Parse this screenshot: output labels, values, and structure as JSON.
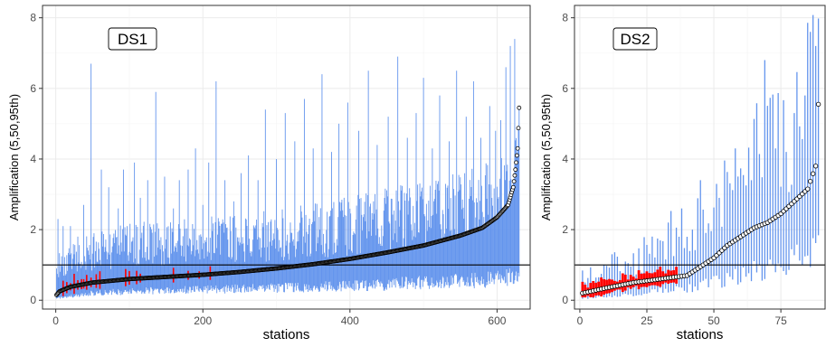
{
  "colors": {
    "interval": "#6495ed",
    "interval_highlight": "#ff0000",
    "median_fill": "#ffffff",
    "median_stroke": "#000000",
    "reference_line": "#000000",
    "grid": "#ebebeb",
    "panel_border": "#333333"
  },
  "chart_data": [
    {
      "type": "scatter",
      "tag": "DS1",
      "xlabel": "stations",
      "ylabel": "Amplification (5,50,95th)",
      "xlim": [
        -18,
        645
      ],
      "ylim": [
        -0.25,
        8.35
      ],
      "xticks": [
        0,
        200,
        400,
        600
      ],
      "xtick_labels": [
        "0",
        "200",
        "400",
        "600"
      ],
      "yticks": [
        0,
        2,
        4,
        6,
        8
      ],
      "ytick_labels": [
        "0",
        "2",
        "4",
        "6",
        "8"
      ],
      "reference_line_y": 1,
      "n_stations": 630,
      "median_curve": [
        [
          1,
          0.15
        ],
        [
          5,
          0.25
        ],
        [
          20,
          0.38
        ],
        [
          50,
          0.5
        ],
        [
          100,
          0.6
        ],
        [
          150,
          0.66
        ],
        [
          200,
          0.72
        ],
        [
          250,
          0.8
        ],
        [
          300,
          0.9
        ],
        [
          350,
          1.02
        ],
        [
          400,
          1.17
        ],
        [
          450,
          1.35
        ],
        [
          500,
          1.55
        ],
        [
          550,
          1.83
        ],
        [
          580,
          2.05
        ],
        [
          600,
          2.35
        ],
        [
          615,
          2.7
        ],
        [
          622,
          3.2
        ],
        [
          625,
          3.7
        ],
        [
          628,
          4.3
        ],
        [
          630,
          5.45
        ]
      ],
      "interval_envelope": {
        "x": [
          1,
          50,
          100,
          200,
          300,
          400,
          500,
          560,
          600,
          630
        ],
        "p5": [
          0.05,
          0.2,
          0.25,
          0.3,
          0.35,
          0.4,
          0.5,
          0.55,
          0.6,
          0.7
        ],
        "p95": [
          1.1,
          1.5,
          1.7,
          1.8,
          2.0,
          2.3,
          2.6,
          2.85,
          3.2,
          3.6
        ]
      },
      "interval_spikes": [
        [
          3,
          2.3
        ],
        [
          10,
          2.1
        ],
        [
          20,
          2.1
        ],
        [
          30,
          1.8
        ],
        [
          38,
          2.7
        ],
        [
          48,
          6.7
        ],
        [
          62,
          3.7
        ],
        [
          72,
          3.2
        ],
        [
          85,
          2.6
        ],
        [
          92,
          3.7
        ],
        [
          107,
          3.9
        ],
        [
          115,
          2.9
        ],
        [
          125,
          3.4
        ],
        [
          136,
          5.9
        ],
        [
          148,
          3.5
        ],
        [
          160,
          2.6
        ],
        [
          168,
          3.4
        ],
        [
          180,
          3.7
        ],
        [
          190,
          4.3
        ],
        [
          200,
          2.7
        ],
        [
          208,
          3.9
        ],
        [
          218,
          6.2
        ],
        [
          230,
          3.4
        ],
        [
          242,
          2.8
        ],
        [
          252,
          3.6
        ],
        [
          262,
          4.1
        ],
        [
          275,
          3.4
        ],
        [
          285,
          5.4
        ],
        [
          300,
          4.0
        ],
        [
          312,
          5.3
        ],
        [
          325,
          4.5
        ],
        [
          338,
          5.7
        ],
        [
          350,
          4.3
        ],
        [
          362,
          6.4
        ],
        [
          375,
          4.2
        ],
        [
          385,
          5.0
        ],
        [
          397,
          5.6
        ],
        [
          412,
          4.8
        ],
        [
          425,
          6.5
        ],
        [
          437,
          4.4
        ],
        [
          452,
          5.2
        ],
        [
          465,
          6.9
        ],
        [
          478,
          4.6
        ],
        [
          490,
          5.3
        ],
        [
          500,
          6.3
        ],
        [
          512,
          4.3
        ],
        [
          522,
          5.8
        ],
        [
          535,
          4.5
        ],
        [
          545,
          6.5
        ],
        [
          558,
          5.2
        ],
        [
          568,
          6.2
        ],
        [
          578,
          4.6
        ],
        [
          590,
          5.5
        ],
        [
          598,
          4.8
        ],
        [
          605,
          5.1
        ],
        [
          612,
          6.6
        ],
        [
          618,
          7.2
        ],
        [
          624,
          7.4
        ]
      ],
      "highlight_indices": [
        10,
        15,
        20,
        25,
        30,
        35,
        38,
        42,
        48,
        55,
        60,
        95,
        100,
        110,
        115,
        160,
        180,
        195,
        210
      ]
    },
    {
      "type": "scatter",
      "tag": "DS2",
      "xlabel": "stations",
      "ylabel": "Amplification (5,50,95th)",
      "xlim": [
        -2,
        91.5
      ],
      "ylim": [
        -0.25,
        8.35
      ],
      "xticks": [
        0,
        25,
        50,
        75
      ],
      "xtick_labels": [
        "0",
        "25",
        "50",
        "75"
      ],
      "yticks": [
        0,
        2,
        4,
        6,
        8
      ],
      "ytick_labels": [
        "0",
        "2",
        "4",
        "6",
        "8"
      ],
      "reference_line_y": 1,
      "n_stations": 89,
      "median_curve": [
        [
          1,
          0.2
        ],
        [
          10,
          0.35
        ],
        [
          20,
          0.5
        ],
        [
          30,
          0.6
        ],
        [
          40,
          0.7
        ],
        [
          50,
          1.2
        ],
        [
          55,
          1.55
        ],
        [
          60,
          1.8
        ],
        [
          65,
          2.05
        ],
        [
          70,
          2.2
        ],
        [
          75,
          2.45
        ],
        [
          80,
          2.8
        ],
        [
          85,
          3.15
        ],
        [
          88,
          3.8
        ],
        [
          89,
          5.55
        ]
      ],
      "interval_envelope": {
        "x": [
          1,
          20,
          40,
          50,
          60,
          70,
          80,
          89
        ],
        "p5": [
          0.05,
          0.15,
          0.35,
          0.5,
          0.7,
          0.9,
          1.1,
          1.4
        ],
        "p95": [
          0.8,
          1.2,
          2.3,
          3.0,
          4.0,
          4.6,
          5.5,
          6.6
        ]
      },
      "interval_spikes": [
        [
          33,
          2.2
        ],
        [
          38,
          2.6
        ],
        [
          45,
          3.4
        ],
        [
          52,
          2.9
        ],
        [
          58,
          4.3
        ],
        [
          64,
          3.4
        ],
        [
          69,
          6.8
        ],
        [
          73,
          4.3
        ],
        [
          77,
          4.2
        ],
        [
          80,
          5.3
        ],
        [
          84,
          5.8
        ],
        [
          86,
          7.6
        ],
        [
          88,
          7.2
        ]
      ],
      "highlight_max_index": 36
    }
  ]
}
